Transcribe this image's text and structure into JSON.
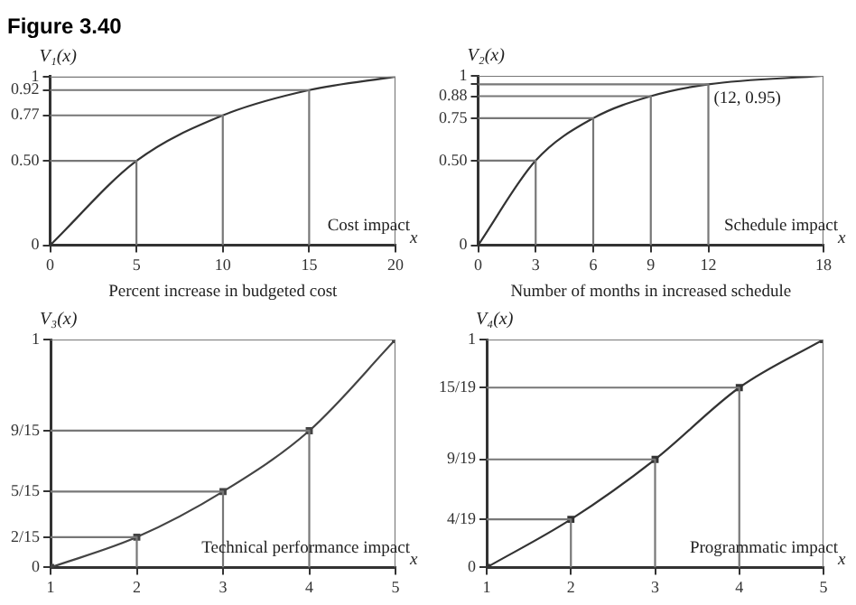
{
  "chart_data": [
    {
      "type": "line",
      "title": "Figure 3.40",
      "xlabel": "Percent increase in budgeted cost",
      "ylabel": "V₁(x)",
      "x": [
        0,
        5,
        10,
        15,
        20
      ],
      "series": [
        {
          "color": "#777777",
          "x": [
            0,
            5,
            5
          ],
          "values": [
            0.5,
            0.5,
            0
          ]
        },
        {
          "color": "#777777",
          "x": [
            0,
            10,
            10
          ],
          "values": [
            0.77,
            0.77,
            0
          ]
        },
        {
          "color": "#777777",
          "x": [
            0,
            15,
            15
          ],
          "values": [
            0.92,
            0.92,
            0
          ]
        },
        {
          "color": "#777777",
          "x": [
            0,
            20,
            20
          ],
          "values": [
            1,
            1,
            0
          ]
        },
        {
          "color": "#333333",
          "values": [
            0,
            0.5,
            0.77,
            0.92,
            1
          ]
        }
      ],
      "xlim": [
        0,
        20
      ],
      "ylim": [
        0,
        1
      ],
      "xticks": [
        0,
        5,
        10,
        15,
        20
      ],
      "yticks": [
        0,
        {
          "value": 0.5,
          "label": "0.50"
        },
        0.77,
        0.92,
        1
      ],
      "annotations": [
        "Cost impact",
        "x"
      ],
      "marker": "none",
      "line_style": "solid"
    },
    {
      "type": "line",
      "xlabel": "Number of months in increased schedule",
      "ylabel": "V₂(x)",
      "x": [
        0,
        3,
        6,
        9,
        12,
        18
      ],
      "series": [
        {
          "color": "#777777",
          "x": [
            0,
            3,
            3
          ],
          "values": [
            0.5,
            0.5,
            0
          ]
        },
        {
          "color": "#777777",
          "x": [
            0,
            6,
            6
          ],
          "values": [
            0.75,
            0.75,
            0
          ]
        },
        {
          "color": "#777777",
          "x": [
            0,
            9,
            9
          ],
          "values": [
            0.88,
            0.88,
            0
          ]
        },
        {
          "color": "#777777",
          "x": [
            0,
            12,
            12
          ],
          "values": [
            0.95,
            0.95,
            0
          ]
        },
        {
          "color": "#777777",
          "x": [
            0,
            18,
            18
          ],
          "values": [
            1,
            1,
            0
          ]
        },
        {
          "color": "#333333",
          "values": [
            0,
            0.5,
            0.75,
            0.88,
            0.95,
            1
          ]
        }
      ],
      "xlim": [
        0,
        18
      ],
      "ylim": [
        0,
        1
      ],
      "xticks": [
        0,
        3,
        6,
        9,
        12,
        18
      ],
      "yticks": [
        0,
        {
          "value": 0.5,
          "label": "0.50"
        },
        0.75,
        0.88,
        {
          "value": 0.95,
          "label": null
        },
        1
      ],
      "annotations": [
        "Schedule impact",
        "x",
        {
          "text": "(12, 0.95)",
          "x": 12,
          "y": 0.95
        }
      ],
      "marker": "none",
      "line_style": "solid"
    },
    {
      "type": "line",
      "ylabel": "V₃(x)",
      "x": [
        1,
        2,
        3,
        4,
        5
      ],
      "series": [
        {
          "color": "#777777",
          "marker": "none",
          "x": [
            1,
            2,
            2
          ],
          "values": [
            0.133,
            0.133,
            0
          ]
        },
        {
          "color": "#777777",
          "marker": "none",
          "x": [
            1,
            3,
            3
          ],
          "values": [
            0.333,
            0.333,
            0
          ]
        },
        {
          "color": "#777777",
          "marker": "none",
          "x": [
            1,
            4,
            4
          ],
          "values": [
            0.6,
            0.6,
            0
          ]
        },
        {
          "color": "#777777",
          "marker": "none",
          "x": [
            1,
            5,
            5
          ],
          "values": [
            1,
            1,
            0
          ]
        },
        {
          "color": "#444444",
          "values": [
            0,
            0.133,
            0.333,
            0.6,
            1
          ]
        }
      ],
      "xlim": [
        1,
        5
      ],
      "ylim": [
        0,
        1
      ],
      "xticks": [
        1,
        2,
        3,
        4,
        5
      ],
      "yticks": [
        0,
        {
          "value": 0.133,
          "label": "2/15"
        },
        {
          "value": 0.333,
          "label": "5/15"
        },
        {
          "value": 0.6,
          "label": "9/15"
        },
        1
      ],
      "annotations": [
        "Technical performance impact",
        "x"
      ],
      "marker": "square",
      "line_style": "solid"
    },
    {
      "type": "line",
      "ylabel": "V₄(x)",
      "x": [
        1,
        2,
        3,
        4,
        5
      ],
      "series": [
        {
          "color": "#777777",
          "marker": "none",
          "x": [
            1,
            2,
            2
          ],
          "values": [
            0.211,
            0.211,
            0
          ]
        },
        {
          "color": "#777777",
          "marker": "none",
          "x": [
            1,
            3,
            3
          ],
          "values": [
            0.474,
            0.474,
            0
          ]
        },
        {
          "color": "#777777",
          "marker": "none",
          "x": [
            1,
            4,
            4
          ],
          "values": [
            0.789,
            0.789,
            0
          ]
        },
        {
          "color": "#777777",
          "marker": "none",
          "x": [
            1,
            5,
            5
          ],
          "values": [
            1,
            1,
            0
          ]
        },
        {
          "color": "#333333",
          "values": [
            0,
            0.211,
            0.474,
            0.789,
            1
          ]
        }
      ],
      "xlim": [
        1,
        5
      ],
      "ylim": [
        0,
        1
      ],
      "xticks": [
        1,
        2,
        3,
        4,
        5
      ],
      "yticks": [
        0,
        {
          "value": 0.211,
          "label": "4/19"
        },
        {
          "value": 0.474,
          "label": "9/19"
        },
        {
          "value": 0.789,
          "label": "15/19"
        },
        1
      ],
      "annotations": [
        "Programmatic impact",
        "x"
      ],
      "marker": "square",
      "line_style": "solid"
    }
  ]
}
